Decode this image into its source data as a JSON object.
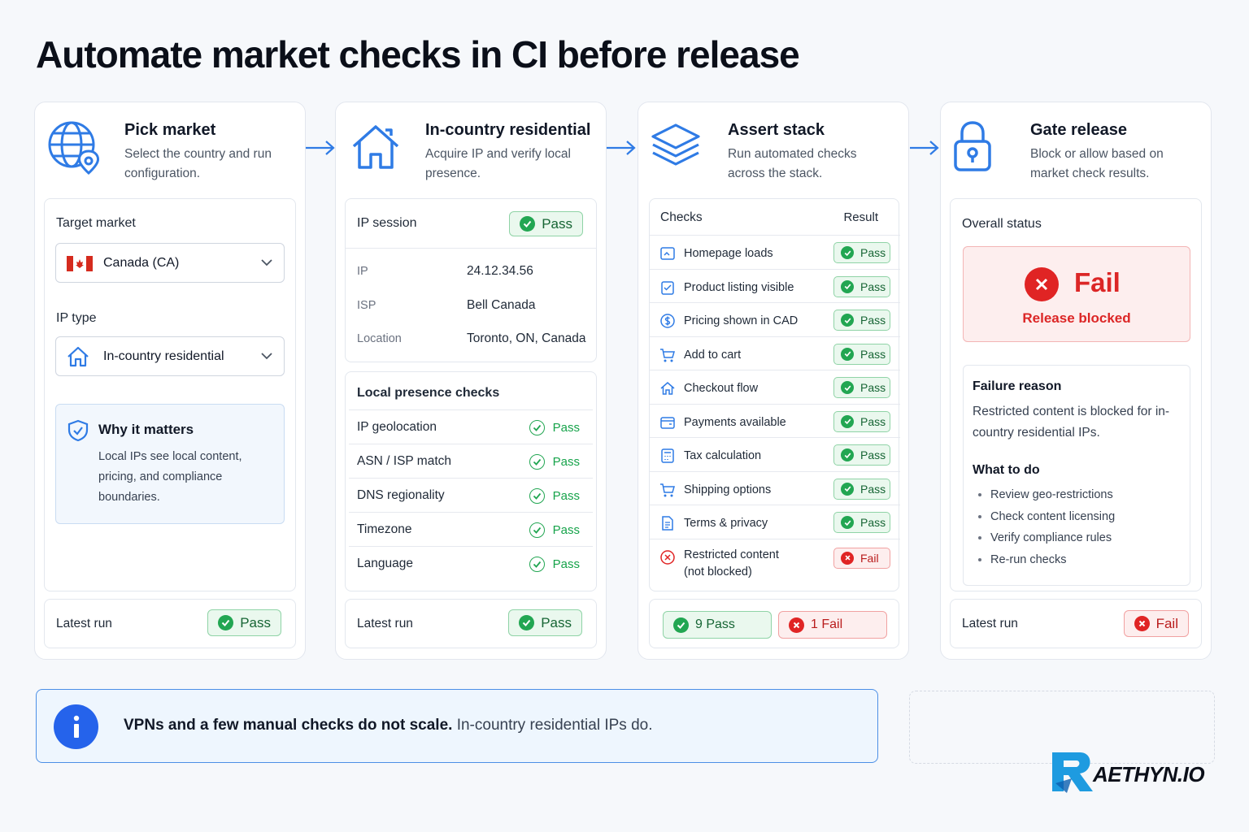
{
  "title": "Automate market checks in CI before release",
  "colors": {
    "accent": "#2563eb",
    "pass": "#22a652",
    "fail": "#e02424"
  },
  "steps": [
    {
      "title": "Pick market",
      "desc": "Select the country and run configuration.",
      "icon": "globe-pin-icon"
    },
    {
      "title": "In-country residential",
      "desc": "Acquire IP and verify local presence.",
      "icon": "house-icon"
    },
    {
      "title": "Assert stack",
      "desc": "Run automated checks across the stack.",
      "icon": "layers-icon"
    },
    {
      "title": "Gate release",
      "desc": "Block or allow based on market check results.",
      "icon": "lock-icon"
    }
  ],
  "pick": {
    "target_label": "Target market",
    "target_value": "Canada (CA)",
    "ip_type_label": "IP type",
    "ip_type_value": "In-country residential",
    "why_title": "Why it matters",
    "why_desc": "Local IPs see local content, pricing, and compliance boundaries.",
    "latest_label": "Latest run",
    "latest_status": "Pass"
  },
  "residential": {
    "session_label": "IP session",
    "session_status": "Pass",
    "ip_key": "IP",
    "ip_value": "24.12.34.56",
    "isp_key": "ISP",
    "isp_value": "Bell Canada",
    "loc_key": "Location",
    "loc_value": "Toronto, ON, Canada",
    "checks_title": "Local presence checks",
    "checks": [
      {
        "label": "IP geolocation",
        "status": "Pass"
      },
      {
        "label": "ASN / ISP match",
        "status": "Pass"
      },
      {
        "label": "DNS regionality",
        "status": "Pass"
      },
      {
        "label": "Timezone",
        "status": "Pass"
      },
      {
        "label": "Language",
        "status": "Pass"
      }
    ],
    "latest_label": "Latest run",
    "latest_status": "Pass"
  },
  "assert": {
    "col_checks": "Checks",
    "col_result": "Result",
    "rows": [
      {
        "label": "Homepage loads",
        "status": "Pass",
        "icon": "browser-icon"
      },
      {
        "label": "Product listing visible",
        "status": "Pass",
        "icon": "list-check-icon"
      },
      {
        "label": "Pricing shown in CAD",
        "status": "Pass",
        "icon": "dollar-icon"
      },
      {
        "label": "Add to cart",
        "status": "Pass",
        "icon": "cart-icon"
      },
      {
        "label": "Checkout flow",
        "status": "Pass",
        "icon": "house-icon"
      },
      {
        "label": "Payments available",
        "status": "Pass",
        "icon": "wallet-icon"
      },
      {
        "label": "Tax calculation",
        "status": "Pass",
        "icon": "calculator-icon"
      },
      {
        "label": "Shipping options",
        "status": "Pass",
        "icon": "cart-icon"
      },
      {
        "label": "Terms & privacy",
        "status": "Pass",
        "icon": "document-icon"
      },
      {
        "label": "Restricted content",
        "label2": "(not blocked)",
        "status": "Fail",
        "icon": "x-circle-icon"
      }
    ],
    "pass_summary": "9 Pass",
    "fail_summary": "1 Fail"
  },
  "gate": {
    "overall_label": "Overall status",
    "status": "Fail",
    "status_sub": "Release blocked",
    "reason_title": "Failure reason",
    "reason_desc": "Restricted content is blocked for in-country residential IPs.",
    "todo_title": "What to do",
    "todo": [
      "Review geo-restrictions",
      "Check content licensing",
      "Verify compliance rules",
      "Re-run checks"
    ],
    "latest_label": "Latest run",
    "latest_status": "Fail"
  },
  "info": {
    "bold": "VPNs and a few manual checks do not scale.",
    "rest": " In-country residential IPs do."
  },
  "logo": {
    "text": "AETHYN.IO"
  }
}
